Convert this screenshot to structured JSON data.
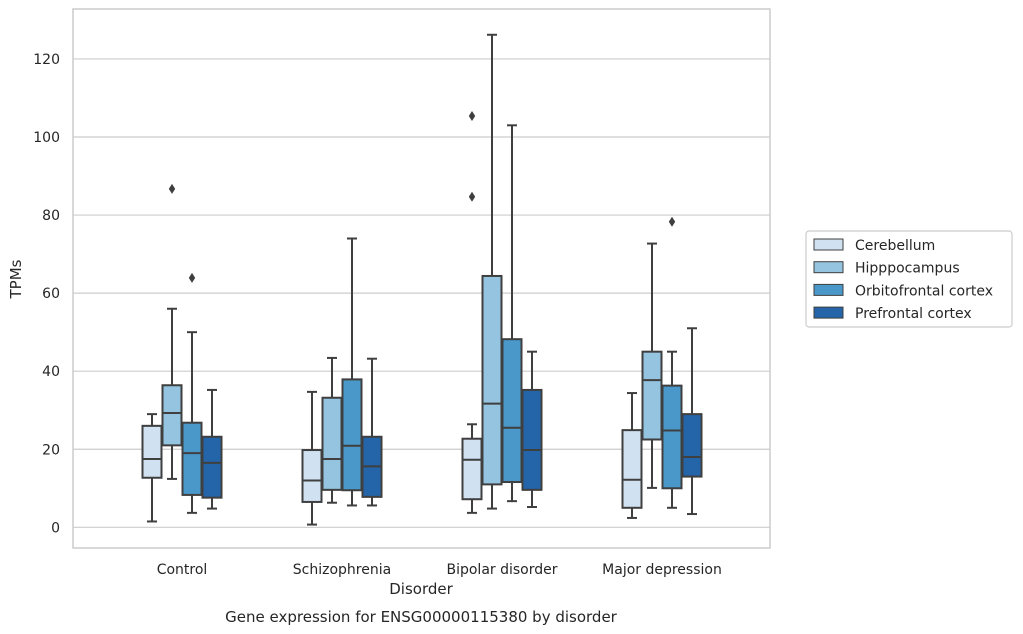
{
  "chart_data": {
    "type": "box",
    "caption": "Gene expression for ENSG00000115380 by disorder",
    "xlabel": "Disorder",
    "ylabel": "TPMs",
    "ylim": [
      -5.3,
      132.8
    ],
    "yticks": [
      0,
      20,
      40,
      60,
      80,
      100,
      120
    ],
    "grid": "horizontal",
    "legend_position": "right",
    "categories": [
      "Control",
      "Schizophrenia",
      "Bipolar disorder",
      "Major depression"
    ],
    "series": [
      {
        "name": "Cerebellum",
        "color": "#d0e1f2",
        "boxes": [
          {
            "whislo": 1.5,
            "q1": 12.7,
            "med": 17.5,
            "q3": 26.0,
            "whishi": 29.0,
            "fliers": []
          },
          {
            "whislo": 0.7,
            "q1": 6.5,
            "med": 12.0,
            "q3": 19.8,
            "whishi": 34.7,
            "fliers": []
          },
          {
            "whislo": 3.7,
            "q1": 7.2,
            "med": 17.3,
            "q3": 22.7,
            "whishi": 26.4,
            "fliers": [
              84.7,
              105.4
            ]
          },
          {
            "whislo": 2.4,
            "q1": 5.0,
            "med": 12.2,
            "q3": 24.9,
            "whishi": 34.4,
            "fliers": []
          }
        ]
      },
      {
        "name": "Hipppocampus",
        "color": "#94c4df",
        "boxes": [
          {
            "whislo": 12.4,
            "q1": 21.0,
            "med": 29.3,
            "q3": 36.4,
            "whishi": 56.0,
            "fliers": [
              86.7
            ]
          },
          {
            "whislo": 6.3,
            "q1": 9.6,
            "med": 17.5,
            "q3": 33.2,
            "whishi": 43.4,
            "fliers": []
          },
          {
            "whislo": 4.8,
            "q1": 11.0,
            "med": 31.7,
            "q3": 64.4,
            "whishi": 126.2,
            "fliers": []
          },
          {
            "whislo": 10.1,
            "q1": 22.5,
            "med": 37.7,
            "q3": 45.0,
            "whishi": 72.7,
            "fliers": []
          }
        ]
      },
      {
        "name": "Orbitofrontal cortex",
        "color": "#4a98c9",
        "boxes": [
          {
            "whislo": 3.7,
            "q1": 8.3,
            "med": 19.0,
            "q3": 26.8,
            "whishi": 50.0,
            "fliers": [
              63.9
            ]
          },
          {
            "whislo": 5.6,
            "q1": 9.5,
            "med": 20.9,
            "q3": 37.9,
            "whishi": 74.0,
            "fliers": []
          },
          {
            "whislo": 6.7,
            "q1": 11.6,
            "med": 25.5,
            "q3": 48.2,
            "whishi": 103.0,
            "fliers": []
          },
          {
            "whislo": 5.0,
            "q1": 10.0,
            "med": 24.8,
            "q3": 36.3,
            "whishi": 45.0,
            "fliers": [
              78.3
            ]
          }
        ]
      },
      {
        "name": "Prefrontal cortex",
        "color": "#2464a8",
        "boxes": [
          {
            "whislo": 4.8,
            "q1": 7.6,
            "med": 16.5,
            "q3": 23.2,
            "whishi": 35.2,
            "fliers": []
          },
          {
            "whislo": 5.6,
            "q1": 7.8,
            "med": 15.6,
            "q3": 23.2,
            "whishi": 43.2,
            "fliers": []
          },
          {
            "whislo": 5.2,
            "q1": 9.6,
            "med": 19.8,
            "q3": 35.2,
            "whishi": 45.0,
            "fliers": []
          },
          {
            "whislo": 3.4,
            "q1": 13.0,
            "med": 18.0,
            "q3": 29.0,
            "whishi": 51.0,
            "fliers": []
          }
        ]
      }
    ],
    "styles": {
      "line_color": "#3f3f3f",
      "grid_color": "#cccccc",
      "spine_color": "#cccccc",
      "legend_border": "#cccccc"
    }
  }
}
